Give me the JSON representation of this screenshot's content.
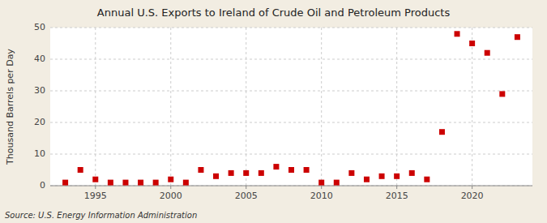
{
  "chart_data": {
    "type": "scatter",
    "title": "Annual U.S. Exports to Ireland of Crude Oil and Petroleum Products",
    "ylabel": "Thousand Barrels per Day",
    "source": "Source: U.S. Energy Information Administration",
    "x": [
      1993,
      1994,
      1995,
      1996,
      1997,
      1998,
      1999,
      2000,
      2001,
      2002,
      2003,
      2004,
      2005,
      2006,
      2007,
      2008,
      2009,
      2010,
      2011,
      2012,
      2013,
      2014,
      2015,
      2016,
      2017,
      2018,
      2019,
      2020,
      2021,
      2022,
      2023
    ],
    "values": [
      1,
      5,
      2,
      1,
      1,
      1,
      1,
      2,
      1,
      5,
      3,
      4,
      4,
      4,
      6,
      5,
      5,
      1,
      1,
      4,
      2,
      3,
      3,
      4,
      2,
      17,
      48,
      45,
      42,
      29,
      47
    ],
    "xlim": [
      1992,
      2024
    ],
    "ylim": [
      0,
      50
    ],
    "xticks": [
      1995,
      2000,
      2005,
      2010,
      2015,
      2020
    ],
    "yticks": [
      0,
      10,
      20,
      30,
      40,
      50
    ],
    "color": "#cc0000",
    "marker": "square",
    "grid": true
  }
}
